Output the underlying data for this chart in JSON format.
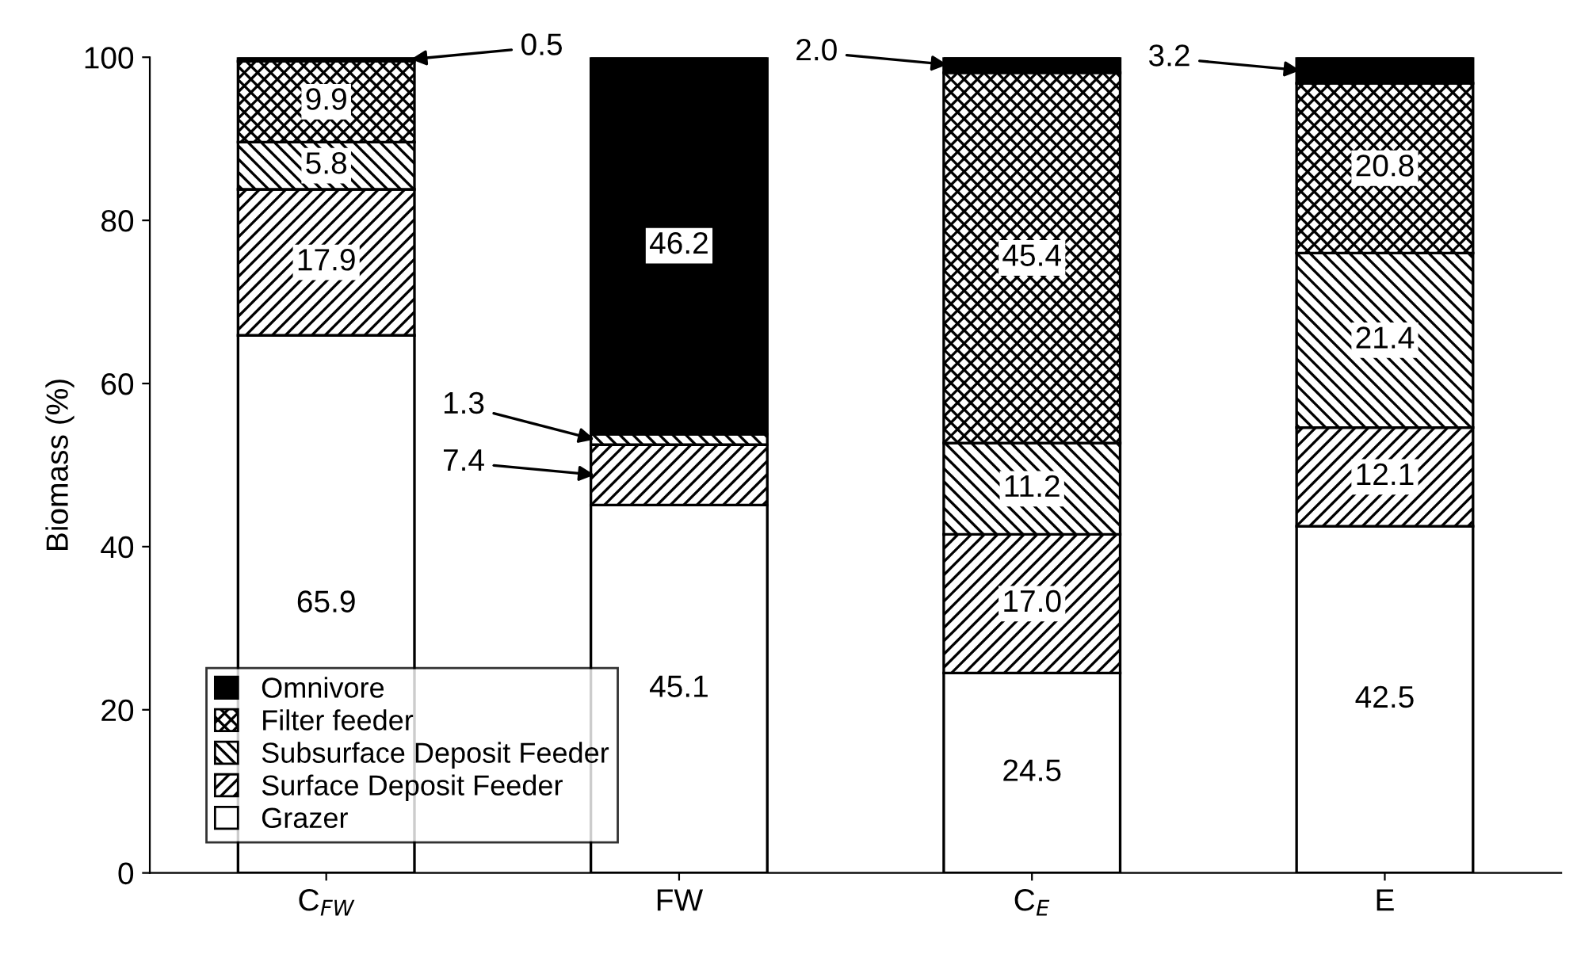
{
  "chart_data": {
    "type": "bar",
    "stacked": true,
    "ylabel": "Biomass (%)",
    "categories": [
      "C$_{FW}$",
      "FW",
      "C$_{E}$",
      "E"
    ],
    "series": [
      {
        "name": "Grazer",
        "color": "#ffffff",
        "values": [
          65.9,
          45.1,
          24.5,
          42.5
        ],
        "value_labels": [
          "65.9",
          "45.1",
          "24.5",
          "42.5"
        ]
      },
      {
        "name": "Surface Deposit Feeder",
        "color": "#000000",
        "values": [
          17.9,
          7.4,
          17.0,
          12.1
        ],
        "value_labels": [
          "17.9",
          "7.4",
          "17.0",
          "12.1"
        ]
      },
      {
        "name": "Subsurface Deposit Feeder",
        "color": "#000000",
        "values": [
          5.8,
          1.3,
          11.2,
          21.4
        ],
        "value_labels": [
          "5.8",
          "1.3",
          "11.2",
          "21.4"
        ]
      },
      {
        "name": "Filter feeder",
        "color": "#000000",
        "values": [
          9.9,
          0,
          45.4,
          20.8
        ],
        "value_labels": [
          "9.9",
          null,
          "45.4",
          "20.8"
        ]
      },
      {
        "name": "Omnivore",
        "color": "#000000",
        "values": [
          0.5,
          46.2,
          2.0,
          3.2
        ],
        "value_labels": [
          "0.5",
          "46.2",
          "2.0",
          "3.2"
        ]
      }
    ],
    "ylim": [
      0,
      100
    ],
    "yticks": [
      0,
      20,
      40,
      60,
      80,
      100
    ],
    "grid": false,
    "legend": "bottom left"
  }
}
